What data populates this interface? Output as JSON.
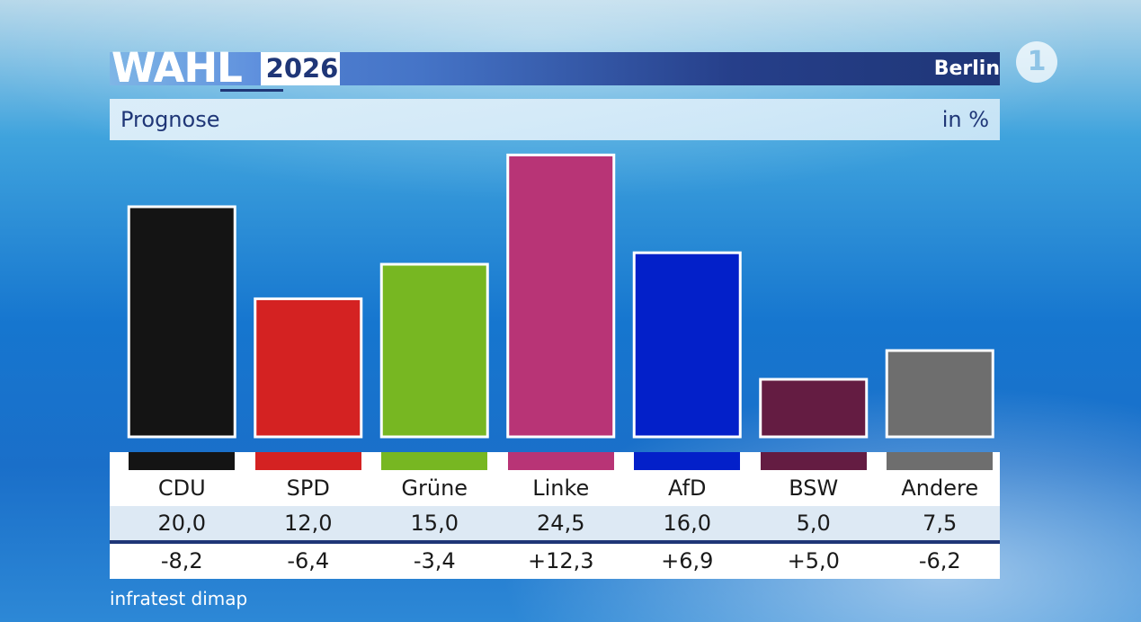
{
  "header": {
    "logo_word": "WAHL",
    "logo_year": "2026",
    "region": "Berlin",
    "broadcaster_logo": "ARD 1"
  },
  "subheader": {
    "title": "Prognose",
    "unit": "in %"
  },
  "source": "infratest dimap",
  "colors": {
    "CDU": "#141414",
    "SPD": "#d42222",
    "Grüne": "#77b722",
    "Linke": "#b83476",
    "AfD": "#0320c9",
    "BSW": "#641c42",
    "Andere": "#6e6e6e"
  },
  "chart_data": {
    "type": "bar",
    "categories": [
      "CDU",
      "SPD",
      "Grüne",
      "Linke",
      "AfD",
      "BSW",
      "Andere"
    ],
    "values": [
      20.0,
      12.0,
      15.0,
      24.5,
      16.0,
      5.0,
      7.5
    ],
    "value_labels": [
      "20,0",
      "12,0",
      "15,0",
      "24,5",
      "16,0",
      "5,0",
      "7,5"
    ],
    "diffs": [
      "-8,2",
      "-6,4",
      "-3,4",
      "+12,3",
      "+6,9",
      "+5,0",
      "-6,2"
    ],
    "ylim": [
      0,
      25
    ],
    "grid": false,
    "legend": "none"
  }
}
